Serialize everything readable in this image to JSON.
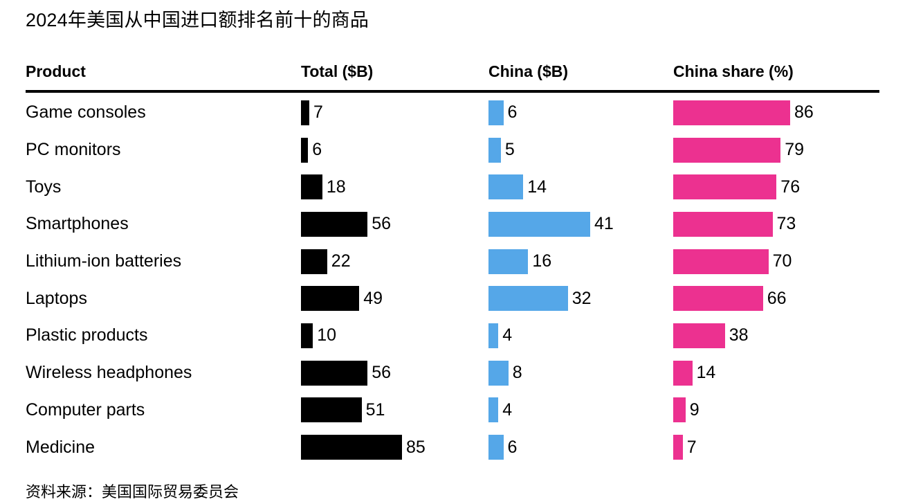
{
  "chart_data": {
    "type": "bar",
    "title": "2024年美国从中国进口额排名前十的商品",
    "source": "资料来源：美国国际贸易委员会",
    "legend_position": "none",
    "grid": false,
    "columns": {
      "product": "Product",
      "total": "Total ($B)",
      "china": "China ($B)",
      "share": "China share (%)"
    },
    "categories": [
      "Game consoles",
      "PC monitors",
      "Toys",
      "Smartphones",
      "Lithium-ion batteries",
      "Laptops",
      "Plastic products",
      "Wireless headphones",
      "Computer parts",
      "Medicine"
    ],
    "series": [
      {
        "name": "Total ($B)",
        "color": "#000000",
        "xlim": [
          0,
          85
        ],
        "values": [
          7,
          6,
          18,
          56,
          22,
          49,
          10,
          56,
          51,
          85
        ]
      },
      {
        "name": "China ($B)",
        "color": "#55a7e8",
        "xlim": [
          0,
          41
        ],
        "values": [
          6,
          5,
          14,
          41,
          16,
          32,
          4,
          8,
          4,
          6
        ]
      },
      {
        "name": "China share (%)",
        "color": "#ec3190",
        "xlim": [
          0,
          86
        ],
        "values": [
          86,
          79,
          76,
          73,
          70,
          66,
          38,
          14,
          9,
          7
        ]
      }
    ]
  }
}
